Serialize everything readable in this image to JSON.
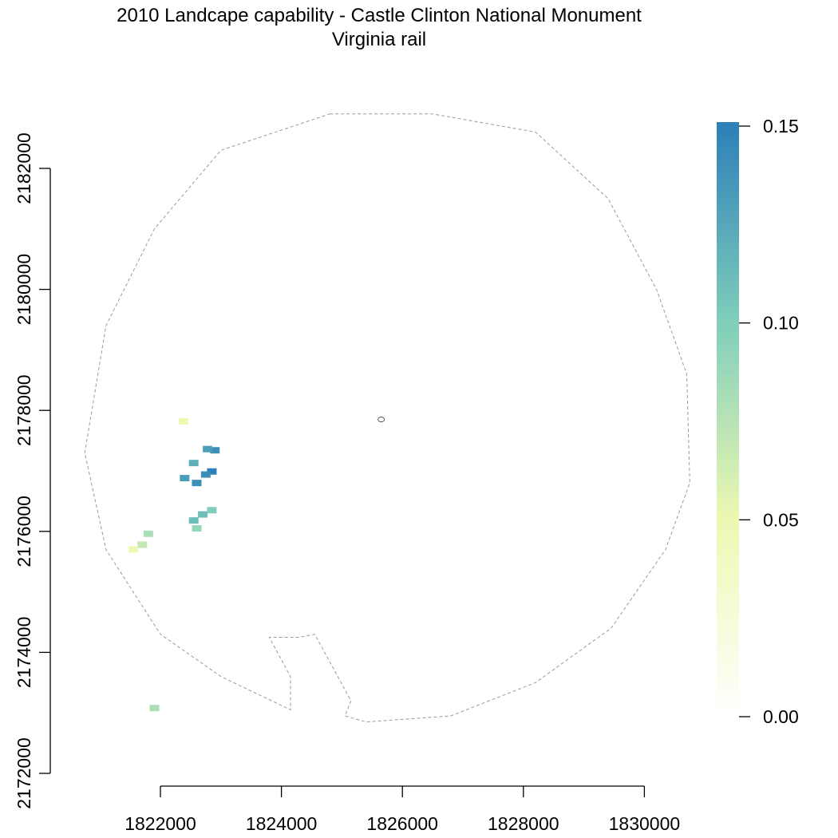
{
  "title": {
    "line1": "2010 Landcape capability - Castle Clinton National Monument",
    "line2": "Virginia rail"
  },
  "chart_data": {
    "type": "heatmap",
    "title": "2010 Landcape capability - Castle Clinton National Monument",
    "subtitle": "Virginia rail",
    "x_ticks": [
      1822000,
      1824000,
      1826000,
      1828000,
      1830000
    ],
    "y_ticks": [
      2172000,
      2174000,
      2176000,
      2178000,
      2180000,
      2182000
    ],
    "x_tick_labels": [
      "1822000",
      "1824000",
      "1826000",
      "1828000",
      "1830000"
    ],
    "y_tick_labels": [
      "2172000",
      "2174000",
      "2176000",
      "2178000",
      "2180000",
      "2182000"
    ],
    "legend": {
      "placement": "right",
      "min": 0.0,
      "max": 0.15,
      "ticks": [
        "0.00",
        "0.05",
        "0.10",
        "0.15"
      ],
      "tick_values": [
        0.0,
        0.05,
        0.1,
        0.15
      ],
      "colors": [
        "#ffffff",
        "#edf8b1",
        "#7fcdbb",
        "#2c7fb8"
      ]
    },
    "cells": [
      {
        "x": 1822380,
        "y": 2177820,
        "value": 0.05
      },
      {
        "x": 1822900,
        "y": 2177340,
        "value": 0.14
      },
      {
        "x": 1822780,
        "y": 2177360,
        "value": 0.13
      },
      {
        "x": 1822550,
        "y": 2177130,
        "value": 0.12
      },
      {
        "x": 1822850,
        "y": 2176990,
        "value": 0.15
      },
      {
        "x": 1822750,
        "y": 2176940,
        "value": 0.14
      },
      {
        "x": 1822400,
        "y": 2176880,
        "value": 0.13
      },
      {
        "x": 1822600,
        "y": 2176800,
        "value": 0.14
      },
      {
        "x": 1822550,
        "y": 2176180,
        "value": 0.11
      },
      {
        "x": 1822700,
        "y": 2176280,
        "value": 0.11
      },
      {
        "x": 1822850,
        "y": 2176350,
        "value": 0.1
      },
      {
        "x": 1822600,
        "y": 2176050,
        "value": 0.09
      },
      {
        "x": 1821800,
        "y": 2175960,
        "value": 0.08
      },
      {
        "x": 1821700,
        "y": 2175780,
        "value": 0.07
      },
      {
        "x": 1821550,
        "y": 2175700,
        "value": 0.05
      },
      {
        "x": 1821900,
        "y": 2173080,
        "value": 0.08
      }
    ],
    "boundary": [
      [
        1824800,
        2182900
      ],
      [
        1826500,
        2182900
      ],
      [
        1828200,
        2182600
      ],
      [
        1829400,
        2181500
      ],
      [
        1830200,
        2180000
      ],
      [
        1830700,
        2178600
      ],
      [
        1830750,
        2176800
      ],
      [
        1830350,
        2175700
      ],
      [
        1829450,
        2174400
      ],
      [
        1828200,
        2173500
      ],
      [
        1826800,
        2172950
      ],
      [
        1825400,
        2172850
      ],
      [
        1825050,
        2172950
      ],
      [
        1825150,
        2173200
      ],
      [
        1824550,
        2174300
      ],
      [
        1824300,
        2174250
      ],
      [
        1823800,
        2174250
      ],
      [
        1824150,
        2173600
      ],
      [
        1824150,
        2173050
      ],
      [
        1823000,
        2173600
      ],
      [
        1822000,
        2174300
      ],
      [
        1821100,
        2175700
      ],
      [
        1820750,
        2177300
      ],
      [
        1821100,
        2179400
      ],
      [
        1821900,
        2181000
      ],
      [
        1823000,
        2182300
      ]
    ],
    "center_marker": {
      "x": 1825650,
      "y": 2177850
    }
  }
}
